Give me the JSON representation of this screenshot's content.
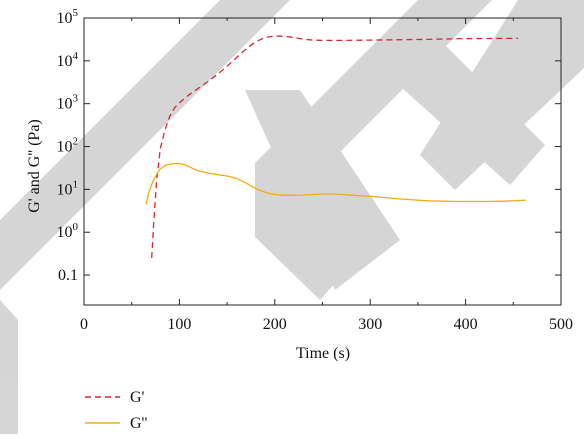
{
  "chart_data": {
    "type": "line",
    "title": "",
    "xlabel": "Time (s)",
    "ylabel": "G' and G'' (Pa)",
    "xlim": [
      0,
      500
    ],
    "ylim": [
      0.02,
      100000
    ],
    "yscale": "log",
    "x_ticks": [
      0,
      100,
      200,
      300,
      400,
      500
    ],
    "y_ticks": [
      {
        "value": 0.1,
        "label": "0.1"
      },
      {
        "value": 1,
        "base": "10",
        "exp": "0"
      },
      {
        "value": 10,
        "base": "10",
        "exp": "1"
      },
      {
        "value": 100,
        "base": "10",
        "exp": "2"
      },
      {
        "value": 1000,
        "base": "10",
        "exp": "3"
      },
      {
        "value": 10000,
        "base": "10",
        "exp": "4"
      },
      {
        "value": 100000,
        "base": "10",
        "exp": "5"
      }
    ],
    "grid": false,
    "legend_position": "bottom-left",
    "series": [
      {
        "name": "G'",
        "color": "#d7262d",
        "dash": "dashed",
        "x": [
          71,
          73,
          76,
          80,
          85,
          90,
          95,
          100,
          110,
          120,
          130,
          140,
          150,
          160,
          170,
          180,
          190,
          200,
          210,
          220,
          230,
          240,
          250,
          270,
          300,
          350,
          400,
          455
        ],
        "y": [
          0.25,
          1.5,
          15,
          90,
          250,
          520,
          800,
          1050,
          1600,
          2300,
          3300,
          4900,
          7500,
          12000,
          19000,
          28000,
          35000,
          38000,
          37500,
          35000,
          32000,
          30500,
          30000,
          30000,
          30500,
          31500,
          33000,
          33500
        ]
      },
      {
        "name": "G''",
        "color": "#f2ac12",
        "dash": "solid",
        "x": [
          65,
          68,
          72,
          76,
          80,
          85,
          90,
          95,
          100,
          105,
          110,
          115,
          120,
          130,
          140,
          150,
          160,
          170,
          180,
          190,
          200,
          210,
          220,
          230,
          240,
          250,
          260,
          270,
          280,
          300,
          330,
          360,
          390,
          420,
          440,
          463
        ],
        "y": [
          4.5,
          8.5,
          15,
          22,
          30,
          36,
          39,
          40,
          40,
          38,
          34,
          30,
          27,
          24,
          22,
          20.5,
          18,
          14,
          10.5,
          8.5,
          7.6,
          7.3,
          7.3,
          7.4,
          7.6,
          7.8,
          7.8,
          7.6,
          7.3,
          6.9,
          6.0,
          5.4,
          5.2,
          5.2,
          5.3,
          5.6
        ]
      }
    ]
  },
  "watermark": "RETRACTED"
}
